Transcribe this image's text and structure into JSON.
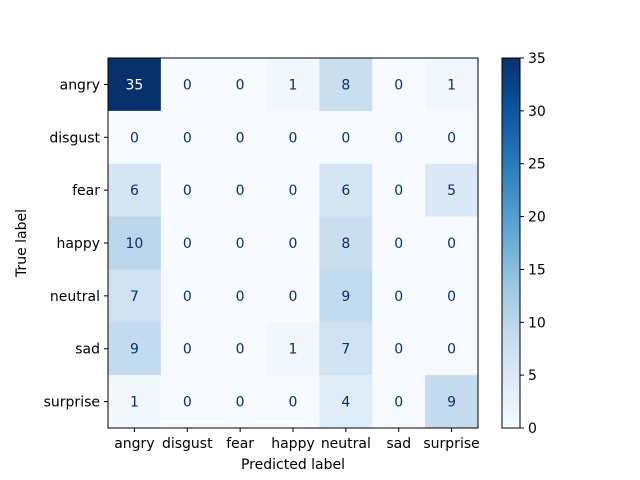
{
  "chart_data": {
    "type": "heatmap",
    "title": "",
    "xlabel": "Predicted label",
    "ylabel": "True label",
    "x_categories": [
      "angry",
      "disgust",
      "fear",
      "happy",
      "neutral",
      "sad",
      "surprise"
    ],
    "y_categories": [
      "angry",
      "disgust",
      "fear",
      "happy",
      "neutral",
      "sad",
      "surprise"
    ],
    "values": [
      [
        35,
        0,
        0,
        1,
        8,
        0,
        1
      ],
      [
        0,
        0,
        0,
        0,
        0,
        0,
        0
      ],
      [
        6,
        0,
        0,
        0,
        6,
        0,
        5
      ],
      [
        10,
        0,
        0,
        0,
        8,
        0,
        0
      ],
      [
        7,
        0,
        0,
        0,
        9,
        0,
        0
      ],
      [
        9,
        0,
        0,
        1,
        7,
        0,
        0
      ],
      [
        1,
        0,
        0,
        0,
        4,
        0,
        9
      ]
    ],
    "colormap": "Blues",
    "colorbar": {
      "min": 0,
      "max": 35,
      "ticks": [
        0,
        5,
        10,
        15,
        20,
        25,
        30,
        35
      ]
    },
    "text_colors": {
      "light_cell": "#08306b",
      "dark_cell": "#ffffff"
    },
    "grid": false
  }
}
